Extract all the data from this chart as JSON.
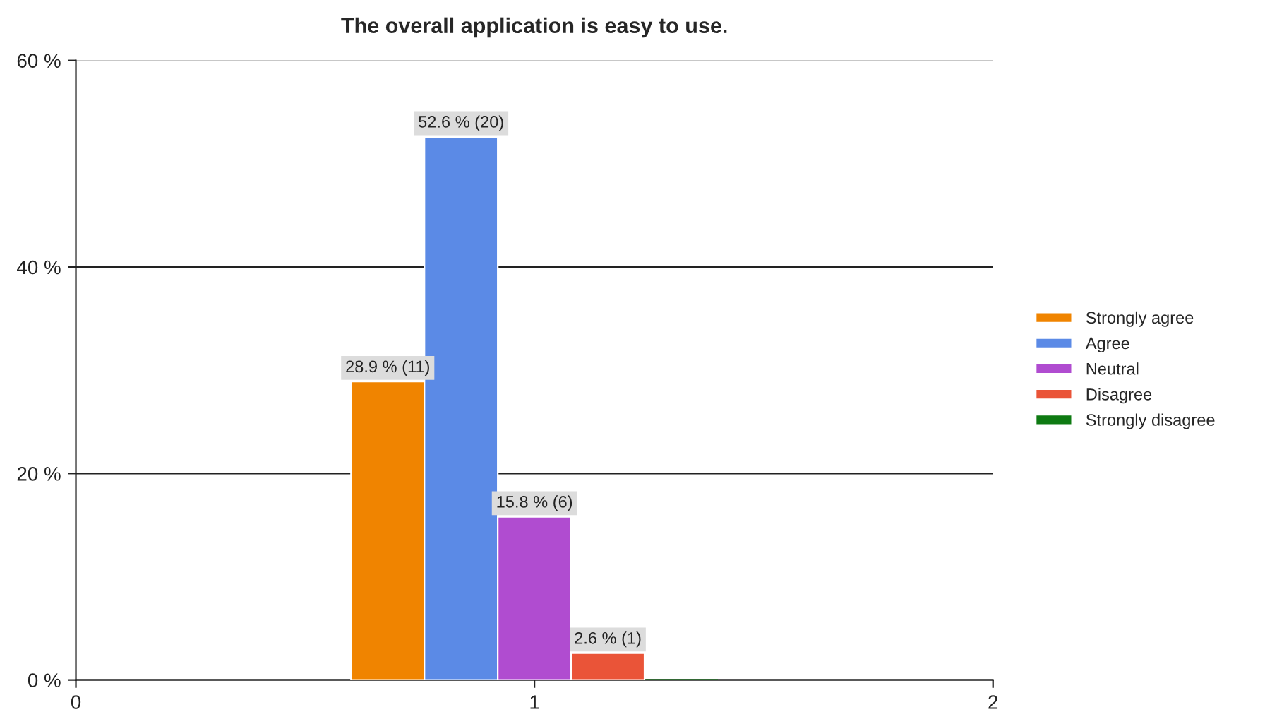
{
  "chart_data": {
    "type": "bar",
    "title": "The overall application is easy to use.",
    "series": [
      {
        "name": "Strongly agree",
        "color": "#f08400",
        "x": [
          0.68
        ],
        "values": [
          28.9
        ],
        "value_labels": [
          "28.9 % (11)"
        ]
      },
      {
        "name": "Agree",
        "color": "#5b8ae6",
        "x": [
          0.84
        ],
        "values": [
          52.6
        ],
        "value_labels": [
          "52.6 % (20)"
        ]
      },
      {
        "name": "Neutral",
        "color": "#b04cd0",
        "x": [
          1.0
        ],
        "values": [
          15.8
        ],
        "value_labels": [
          "15.8 % (6)"
        ]
      },
      {
        "name": "Disagree",
        "color": "#ea5438",
        "x": [
          1.16
        ],
        "values": [
          2.6
        ],
        "value_labels": [
          "2.6 % (1)"
        ]
      },
      {
        "name": "Strongly disagree",
        "color": "#0e7a12",
        "x": [
          1.32
        ],
        "values": [
          0
        ],
        "value_labels": [
          null
        ]
      }
    ],
    "xlim": [
      0,
      2
    ],
    "xticks": [
      0,
      1,
      2
    ],
    "ylim": [
      0,
      60
    ],
    "yticks": [
      {
        "value": 0,
        "label": "0 %"
      },
      {
        "value": 20,
        "label": "20 %"
      },
      {
        "value": 40,
        "label": "40 %"
      },
      {
        "value": 60,
        "label": "60 %"
      }
    ],
    "grid": "y",
    "legend": "right"
  }
}
